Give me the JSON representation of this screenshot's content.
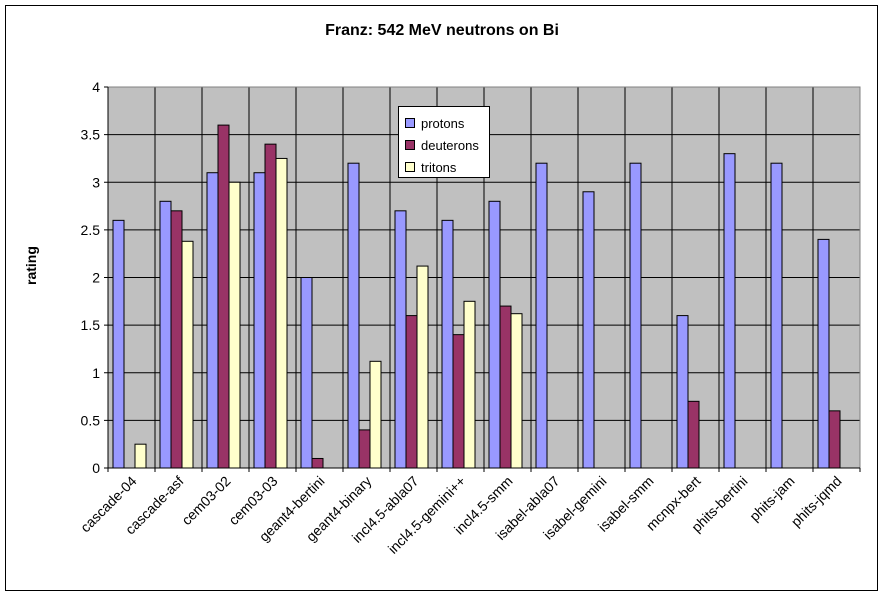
{
  "chart_data": {
    "type": "bar",
    "title": "Franz: 542 MeV neutrons on Bi",
    "xlabel": "",
    "ylabel": "rating",
    "ylim": [
      0,
      4
    ],
    "yticks": [
      "0",
      "0.5",
      "1",
      "1.5",
      "2",
      "2.5",
      "3",
      "3.5",
      "4"
    ],
    "grid": true,
    "legend_position": "top-center",
    "plot_background": "#c0c0c0",
    "categories": [
      "cascade-04",
      "cascade-asf",
      "cem03-02",
      "cem03-03",
      "geant4-bertini",
      "geant4-binary",
      "incl4.5-abla07",
      "incl4.5-gemini++",
      "incl4.5-smm",
      "isabel-abla07",
      "isabel-gemini",
      "isabel-smm",
      "mcnpx-bert",
      "phits-bertini",
      "phits-jam",
      "phits-jqmd"
    ],
    "series": [
      {
        "name": "protons",
        "color": "#9999ff",
        "values": [
          2.6,
          2.8,
          3.1,
          3.1,
          2.0,
          3.2,
          2.7,
          2.6,
          2.8,
          3.2,
          2.9,
          3.2,
          1.6,
          3.3,
          3.2,
          2.4
        ]
      },
      {
        "name": "deuterons",
        "color": "#993366",
        "values": [
          null,
          2.7,
          3.6,
          3.4,
          0.1,
          0.4,
          1.6,
          1.4,
          1.7,
          null,
          null,
          null,
          0.7,
          null,
          null,
          0.6
        ]
      },
      {
        "name": "tritons",
        "color": "#ffffcc",
        "values": [
          0.25,
          2.38,
          3.0,
          3.25,
          null,
          1.12,
          2.12,
          1.75,
          1.62,
          null,
          null,
          null,
          null,
          null,
          null,
          null
        ]
      }
    ]
  }
}
